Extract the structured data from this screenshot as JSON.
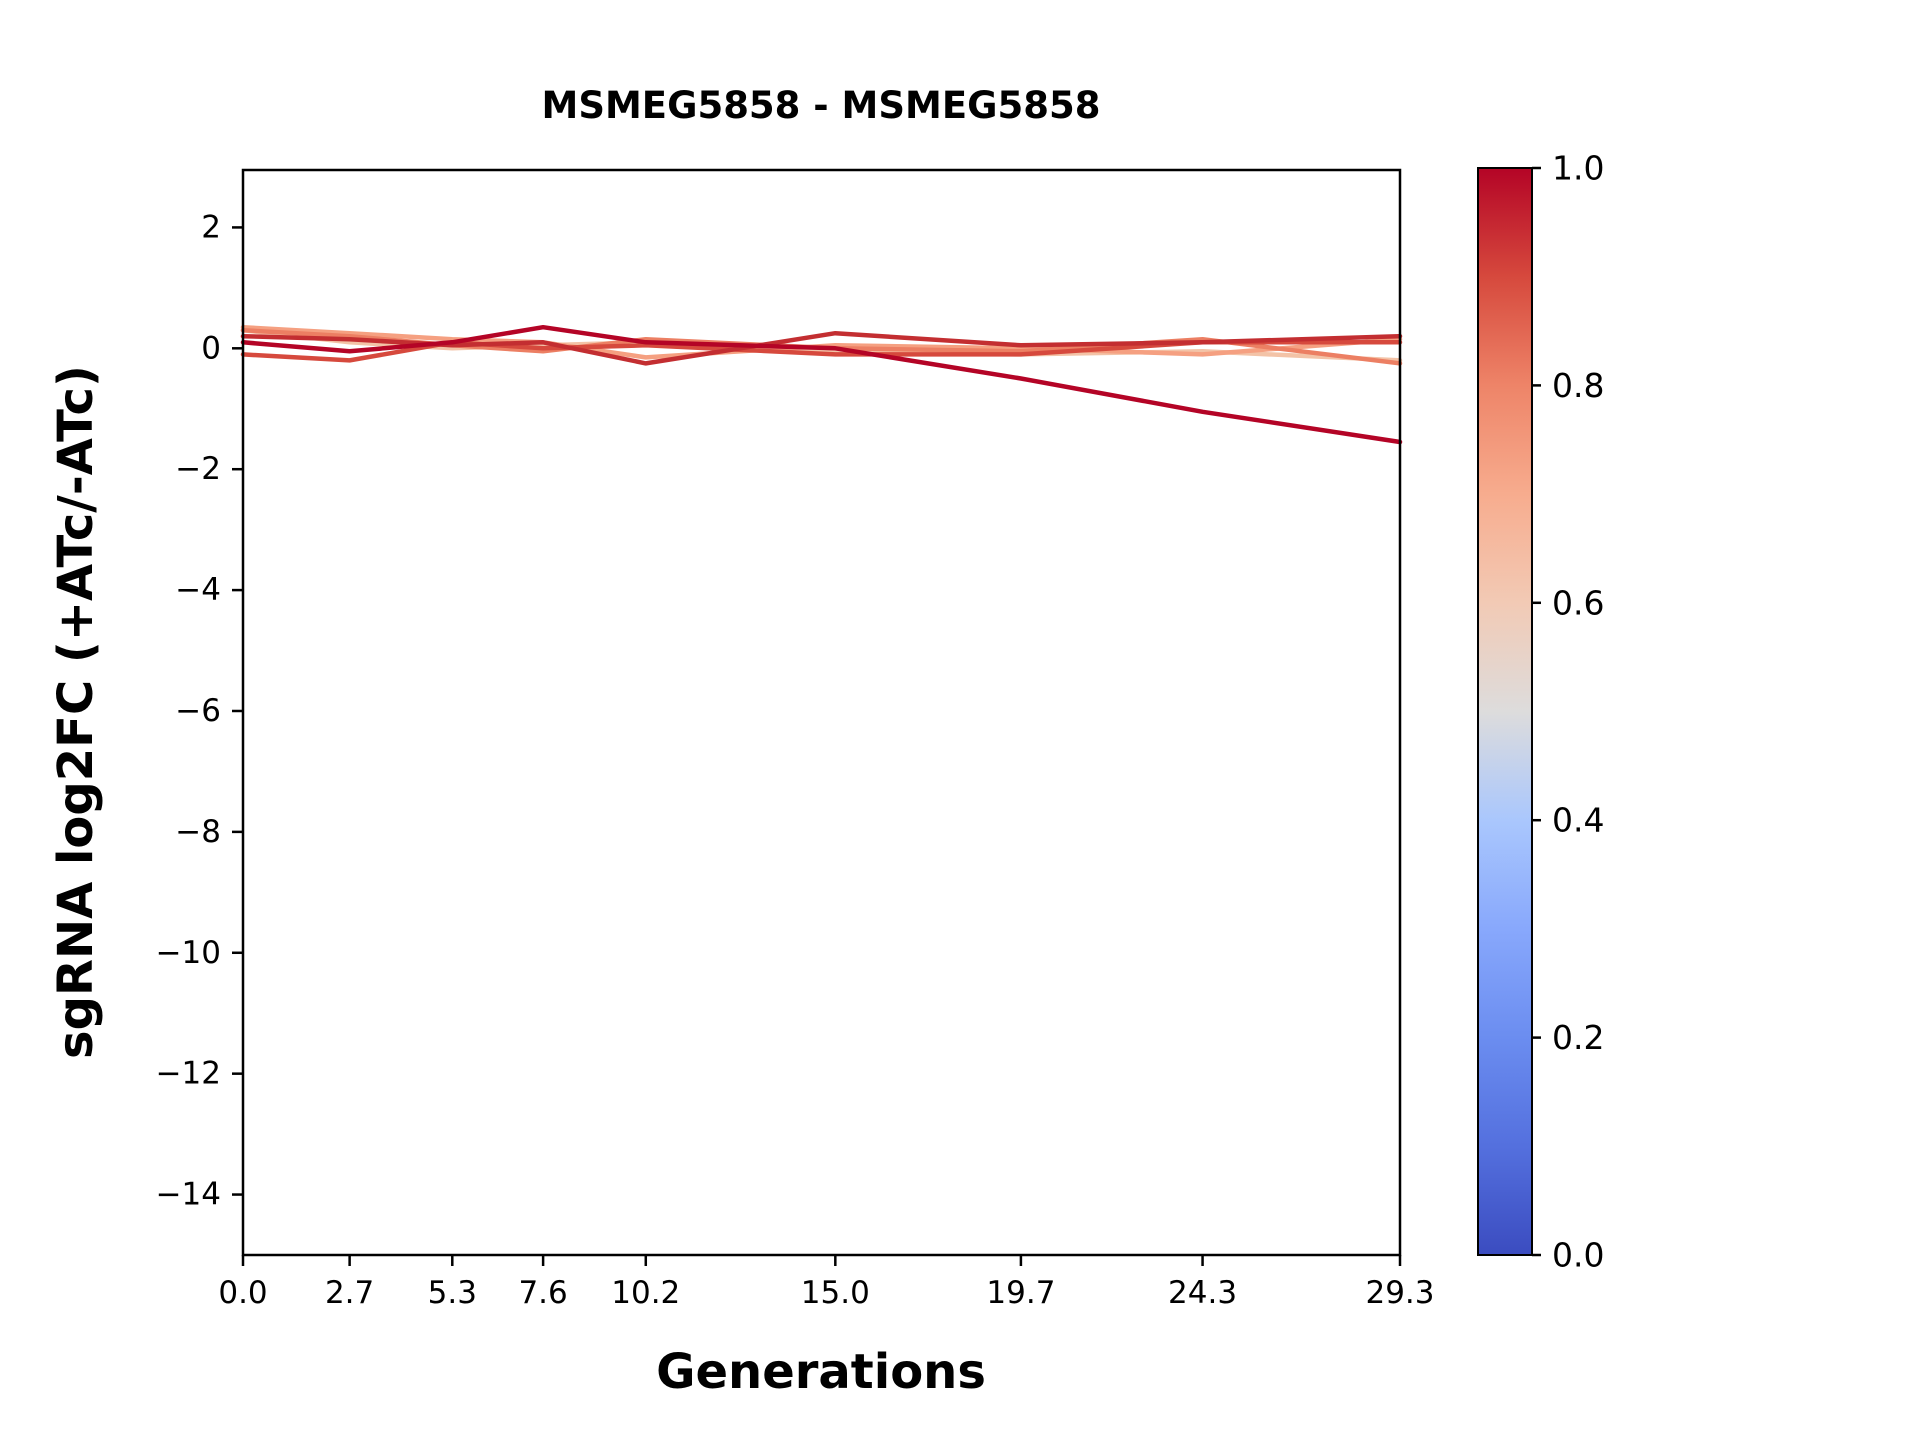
{
  "chart_data": {
    "type": "line",
    "title": "MSMEG5858 - MSMEG5858",
    "xlabel": "Generations",
    "ylabel": "sgRNA log2FC (+ATc/-ATc)",
    "xlim": [
      0,
      29.3
    ],
    "ylim": [
      -15,
      2.95
    ],
    "grid": false,
    "legend": "none",
    "x": [
      0.0,
      2.7,
      5.3,
      7.6,
      10.2,
      15.0,
      19.7,
      24.3,
      29.3
    ],
    "x_tick_labels": [
      "0.0",
      "2.7",
      "5.3",
      "7.6",
      "10.2",
      "15.0",
      "19.7",
      "24.3",
      "29.3"
    ],
    "y_tick_values": [
      2,
      0,
      -2,
      -4,
      -6,
      -8,
      -10,
      -12,
      -14
    ],
    "y_tick_labels": [
      "2",
      "0",
      "−2",
      "−4",
      "−6",
      "−8",
      "−10",
      "−12",
      "−14"
    ],
    "series": [
      {
        "name": "line-1",
        "cmap_value": 1.0,
        "color": "#b40426",
        "values": [
          0.1,
          -0.05,
          0.1,
          0.35,
          0.1,
          0.0,
          -0.5,
          -1.05,
          -1.55
        ]
      },
      {
        "name": "line-2",
        "cmap_value": 0.93,
        "color": "#c32e31",
        "values": [
          0.2,
          0.15,
          0.05,
          0.1,
          -0.25,
          0.25,
          0.05,
          0.1,
          0.2
        ]
      },
      {
        "name": "line-3",
        "cmap_value": 0.85,
        "color": "#d6493d",
        "values": [
          -0.1,
          -0.2,
          0.1,
          0.0,
          0.05,
          -0.1,
          -0.1,
          0.1,
          0.1
        ]
      },
      {
        "name": "line-4",
        "cmap_value": 0.76,
        "color": "#ec7f63",
        "values": [
          0.3,
          0.2,
          0.05,
          -0.05,
          0.15,
          0.0,
          -0.05,
          0.15,
          -0.25
        ]
      },
      {
        "name": "line-5",
        "cmap_value": 0.66,
        "color": "#f5a081",
        "values": [
          0.35,
          0.25,
          0.15,
          0.1,
          -0.15,
          0.05,
          0.0,
          -0.1,
          0.15
        ]
      },
      {
        "name": "line-6",
        "cmap_value": 0.58,
        "color": "#f3c3a7",
        "values": [
          0.3,
          0.1,
          0.0,
          0.05,
          0.1,
          -0.05,
          -0.1,
          -0.05,
          -0.2
        ]
      }
    ],
    "colorbar": {
      "cmap": "coolwarm",
      "tick_labels": [
        "1.0",
        "0.8",
        "0.6",
        "0.4",
        "0.2",
        "0.0"
      ],
      "tick_values": [
        1.0,
        0.8,
        0.6,
        0.4,
        0.2,
        0.0
      ],
      "gradient_stops": [
        {
          "offset": 0.0,
          "color": "#3b4cc0"
        },
        {
          "offset": 0.1,
          "color": "#5470de"
        },
        {
          "offset": 0.2,
          "color": "#6b8df0"
        },
        {
          "offset": 0.3,
          "color": "#88a8fc"
        },
        {
          "offset": 0.4,
          "color": "#aac7fd"
        },
        {
          "offset": 0.5,
          "color": "#dddcdc"
        },
        {
          "offset": 0.6,
          "color": "#f2cab5"
        },
        {
          "offset": 0.7,
          "color": "#f7ac8e"
        },
        {
          "offset": 0.8,
          "color": "#ee8468"
        },
        {
          "offset": 0.9,
          "color": "#d6493d"
        },
        {
          "offset": 1.0,
          "color": "#b40426"
        }
      ]
    }
  }
}
